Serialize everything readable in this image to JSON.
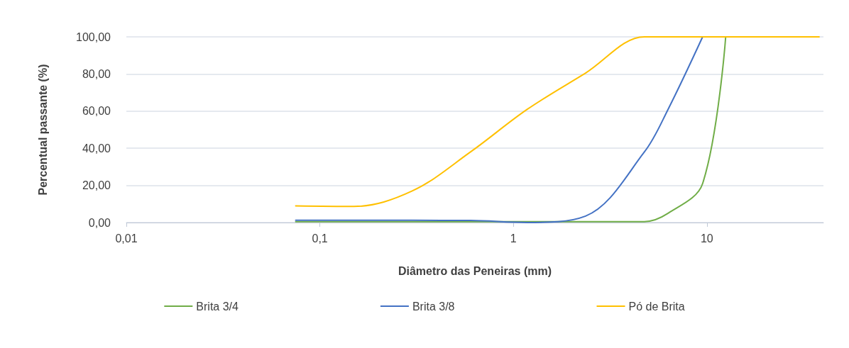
{
  "chart_data": {
    "type": "line",
    "xlabel": "Diâmetro das Peneiras (mm)",
    "ylabel": "Percentual passante (%)",
    "log": "x",
    "xlim": [
      0.01,
      40
    ],
    "xticks": [
      {
        "value": 0.01,
        "label": "0,01"
      },
      {
        "value": 0.1,
        "label": "0,1"
      },
      {
        "value": 1,
        "label": "1"
      },
      {
        "value": 10,
        "label": "10"
      }
    ],
    "ylim": [
      0,
      100
    ],
    "yticks": [
      {
        "value": 0,
        "label": "0,00"
      },
      {
        "value": 20,
        "label": "20,00"
      },
      {
        "value": 40,
        "label": "40,00"
      },
      {
        "value": 60,
        "label": "60,00"
      },
      {
        "value": 80,
        "label": "80,00"
      },
      {
        "value": 100,
        "label": "100,00"
      }
    ],
    "grid": "y",
    "legend": "bottom",
    "marker": "none",
    "line_style": "solid",
    "x": [
      0.075,
      0.15,
      0.3,
      0.6,
      1.18,
      2.36,
      4.75,
      6.3,
      9.5,
      12.5,
      19,
      25,
      38
    ],
    "series": [
      {
        "name": "Brita 3/4",
        "color": "#70ad47",
        "values": [
          0.5,
          0.5,
          0.5,
          0.5,
          0.5,
          0.5,
          0.5,
          5,
          21,
          100,
          null,
          null,
          null
        ]
      },
      {
        "name": "Brita 3/8",
        "color": "#4472c4",
        "values": [
          1.2,
          1.2,
          1.2,
          1.1,
          0,
          3.5,
          38,
          61,
          100,
          null,
          null,
          null,
          null
        ]
      },
      {
        "name": "Pó de Brita",
        "color": "#ffc000",
        "values": [
          9,
          8.7,
          17,
          38,
          61,
          80.5,
          100,
          100,
          100,
          100,
          100,
          100,
          100
        ]
      }
    ]
  }
}
